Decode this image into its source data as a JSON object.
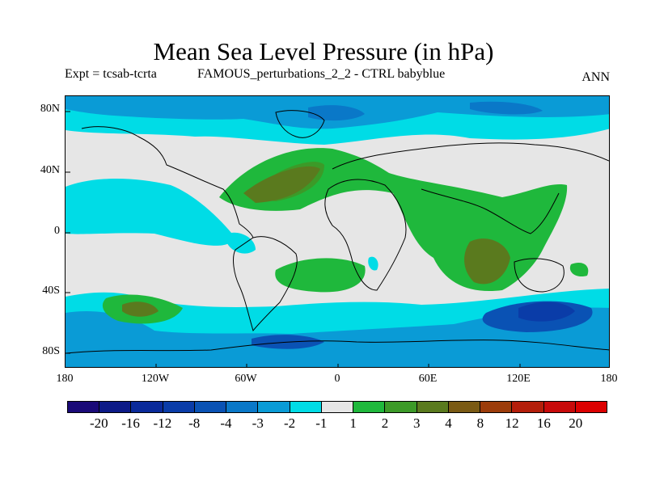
{
  "figure": {
    "title": "Mean Sea Level Pressure (in hPa)",
    "left_subtitle": "Expt = tcsab-tcrta",
    "center_subtitle": "FAMOUS_perturbations_2_2 - CTRL babyblue",
    "right_subtitle": "ANN"
  },
  "map": {
    "projection": "cylindrical equidistant",
    "lat_labels": [
      "80N",
      "40N",
      "0",
      "40S",
      "80S"
    ],
    "lon_labels": [
      "180",
      "120W",
      "60W",
      "0",
      "60E",
      "120E",
      "180"
    ],
    "background_color": "#e6e6e6",
    "coastline_color": "#000000"
  },
  "colorbar": {
    "labels": [
      "-20",
      "-16",
      "-12",
      "-8",
      "-4",
      "-3",
      "-2",
      "-1",
      "1",
      "2",
      "3",
      "4",
      "8",
      "12",
      "16",
      "20"
    ],
    "colors": [
      "#1a0a78",
      "#0c1a87",
      "#0a2a9a",
      "#0a3ca8",
      "#0a52b4",
      "#0a78c8",
      "#0a9bd6",
      "#00dce6",
      "#e6e6e6",
      "#1fb83c",
      "#3c9a28",
      "#5a7a1e",
      "#7a5a14",
      "#9c3c0a",
      "#b41e0a",
      "#c80a0a",
      "#dc0000"
    ]
  }
}
